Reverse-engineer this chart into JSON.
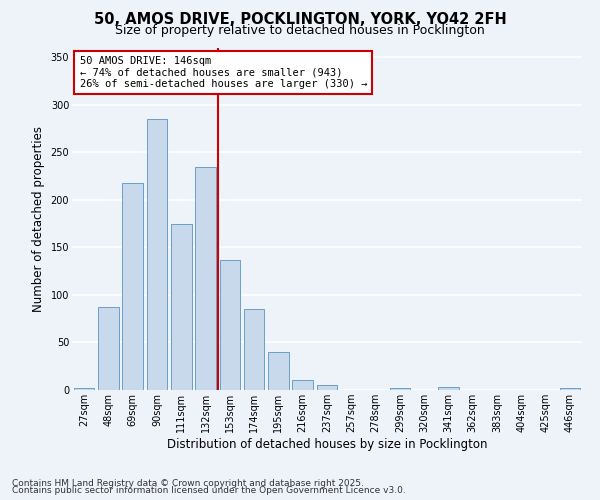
{
  "title_line1": "50, AMOS DRIVE, POCKLINGTON, YORK, YO42 2FH",
  "title_line2": "Size of property relative to detached houses in Pocklington",
  "xlabel": "Distribution of detached houses by size in Pocklington",
  "ylabel": "Number of detached properties",
  "categories": [
    "27sqm",
    "48sqm",
    "69sqm",
    "90sqm",
    "111sqm",
    "132sqm",
    "153sqm",
    "174sqm",
    "195sqm",
    "216sqm",
    "237sqm",
    "257sqm",
    "278sqm",
    "299sqm",
    "320sqm",
    "341sqm",
    "362sqm",
    "383sqm",
    "404sqm",
    "425sqm",
    "446sqm"
  ],
  "values": [
    2,
    87,
    218,
    285,
    175,
    234,
    137,
    85,
    40,
    10,
    5,
    0,
    0,
    2,
    0,
    3,
    0,
    0,
    0,
    0,
    2
  ],
  "bar_color": "#c9d9ec",
  "bar_edge_color": "#6b9fc8",
  "background_color": "#eef2f9",
  "grid_color": "#ffffff",
  "vline_color": "#cc0000",
  "annotation_title": "50 AMOS DRIVE: 146sqm",
  "annotation_line1": "← 74% of detached houses are smaller (943)",
  "annotation_line2": "26% of semi-detached houses are larger (330) →",
  "annotation_box_color": "#ffffff",
  "annotation_box_edge_color": "#cc0000",
  "ylim": [
    0,
    360
  ],
  "yticks": [
    0,
    50,
    100,
    150,
    200,
    250,
    300,
    350
  ],
  "footer_line1": "Contains HM Land Registry data © Crown copyright and database right 2025.",
  "footer_line2": "Contains public sector information licensed under the Open Government Licence v3.0.",
  "title_fontsize": 10.5,
  "subtitle_fontsize": 9,
  "axis_label_fontsize": 8.5,
  "tick_fontsize": 7,
  "annotation_fontsize": 7.5,
  "footer_fontsize": 6.5
}
